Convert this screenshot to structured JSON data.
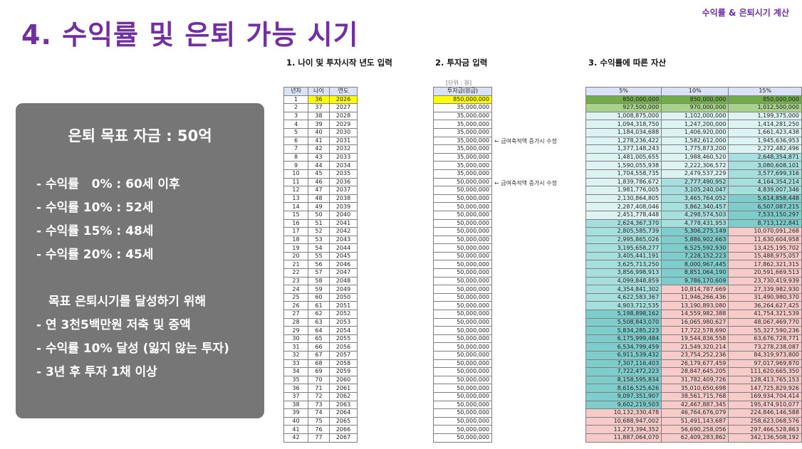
{
  "header": {
    "top_label": "수익률 & 은퇴시기 계산",
    "title": "4. 수익률 및 은퇴 가능 시기"
  },
  "panel": {
    "goal": "은퇴 목표 자금 : 50억",
    "lines": [
      "- 수익률   0% : 60세 이후",
      "- 수익률 10% : 52세",
      "- 수익률 15% : 48세",
      "- 수익률 20% : 45세",
      "목표 은퇴시기를 달성하기 위해",
      "- 연 3천5백만원 저축 및 증액",
      "- 수익률 10% 달성 (잃지 않는 투자)",
      "- 3년 후 투자 1채 이상"
    ]
  },
  "sections": {
    "s1": "1. 나이 및 투자시작 년도 입력",
    "s2": "2. 투자금 입력",
    "s3": "3. 수익률에 따른 자산",
    "unit": "[단위 : 원]"
  },
  "notes": {
    "n1": "← 급여축적액 증가시 수정",
    "n2": "← 급여축적액 증가시 수정"
  },
  "colors": {
    "purple": "#7030a0",
    "highlight_yellow": "#ffff00",
    "green_dark": "#70ad47",
    "green_light": "#a9d18e",
    "teal_light": "#ddf2f2",
    "teal_mid": "#a7dede",
    "teal_dark": "#7fcccc",
    "pink": "#f8cbcb"
  },
  "table": {
    "headers": [
      "년차",
      "나이",
      "연도",
      "투자금(원금)",
      "5%",
      "10%",
      "15%"
    ],
    "rows": [
      [
        "1",
        "36",
        "2026",
        "850,000,000",
        "850,000,000",
        "850,000,000",
        "850,000,000"
      ],
      [
        "2",
        "37",
        "2027",
        "35,000,000",
        "927,500,000",
        "970,000,000",
        "1,012,500,000"
      ],
      [
        "3",
        "38",
        "2028",
        "35,000,000",
        "1,008,875,000",
        "1,102,000,000",
        "1,199,375,000"
      ],
      [
        "4",
        "39",
        "2029",
        "35,000,000",
        "1,094,318,750",
        "1,247,200,000",
        "1,414,281,250"
      ],
      [
        "5",
        "40",
        "2030",
        "35,000,000",
        "1,184,034,688",
        "1,406,920,000",
        "1,661,423,438"
      ],
      [
        "6",
        "41",
        "2031",
        "35,000,000",
        "1,278,236,422",
        "1,582,612,000",
        "1,945,636,953"
      ],
      [
        "7",
        "42",
        "2032",
        "35,000,000",
        "1,377,148,243",
        "1,775,873,200",
        "2,272,482,496"
      ],
      [
        "8",
        "43",
        "2033",
        "35,000,000",
        "1,481,005,655",
        "1,988,460,520",
        "2,648,354,871"
      ],
      [
        "9",
        "44",
        "2034",
        "35,000,000",
        "1,590,055,938",
        "2,222,306,572",
        "3,080,608,101"
      ],
      [
        "10",
        "45",
        "2035",
        "35,000,000",
        "1,704,558,735",
        "2,479,537,229",
        "3,577,699,316"
      ],
      [
        "11",
        "46",
        "2036",
        "50,000,000",
        "1,839,786,672",
        "2,777,490,952",
        "4,164,354,214"
      ],
      [
        "12",
        "47",
        "2037",
        "50,000,000",
        "1,981,776,005",
        "3,105,240,047",
        "4,839,007,346"
      ],
      [
        "13",
        "48",
        "2038",
        "50,000,000",
        "2,130,864,805",
        "3,465,764,052",
        "5,614,858,448"
      ],
      [
        "14",
        "49",
        "2039",
        "50,000,000",
        "2,287,408,046",
        "3,862,340,457",
        "6,507,087,215"
      ],
      [
        "15",
        "50",
        "2040",
        "50,000,000",
        "2,451,778,448",
        "4,298,574,503",
        "7,533,150,297"
      ],
      [
        "16",
        "51",
        "2041",
        "50,000,000",
        "2,624,367,370",
        "4,778,431,953",
        "8,713,122,841"
      ],
      [
        "17",
        "52",
        "2042",
        "50,000,000",
        "2,805,585,739",
        "5,306,275,149",
        "10,070,091,268"
      ],
      [
        "18",
        "53",
        "2043",
        "50,000,000",
        "2,995,865,026",
        "5,886,902,663",
        "11,630,604,958"
      ],
      [
        "19",
        "54",
        "2044",
        "50,000,000",
        "3,195,658,277",
        "6,525,592,930",
        "13,425,195,702"
      ],
      [
        "20",
        "55",
        "2045",
        "50,000,000",
        "3,405,441,191",
        "7,228,152,223",
        "15,488,975,057"
      ],
      [
        "21",
        "56",
        "2046",
        "50,000,000",
        "3,625,713,250",
        "8,000,967,445",
        "17,862,321,315"
      ],
      [
        "22",
        "57",
        "2047",
        "50,000,000",
        "3,856,998,913",
        "8,851,064,190",
        "20,591,669,513"
      ],
      [
        "23",
        "58",
        "2048",
        "50,000,000",
        "4,099,848,859",
        "9,786,170,609",
        "23,730,419,939"
      ],
      [
        "24",
        "59",
        "2049",
        "50,000,000",
        "4,354,841,302",
        "10,814,787,669",
        "27,339,982,930"
      ],
      [
        "25",
        "60",
        "2050",
        "50,000,000",
        "4,622,583,367",
        "11,946,266,436",
        "31,490,980,370"
      ],
      [
        "26",
        "61",
        "2051",
        "50,000,000",
        "4,903,712,535",
        "13,190,893,080",
        "36,264,627,425"
      ],
      [
        "27",
        "62",
        "2052",
        "50,000,000",
        "5,198,898,162",
        "14,559,982,388",
        "41,754,321,539"
      ],
      [
        "28",
        "63",
        "2053",
        "50,000,000",
        "5,508,843,070",
        "16,065,980,627",
        "48,067,469,770"
      ],
      [
        "29",
        "64",
        "2054",
        "50,000,000",
        "5,834,285,223",
        "17,722,578,690",
        "55,327,590,236"
      ],
      [
        "30",
        "65",
        "2055",
        "50,000,000",
        "6,175,999,484",
        "19,544,836,558",
        "63,676,728,771"
      ],
      [
        "31",
        "66",
        "2056",
        "50,000,000",
        "6,534,799,459",
        "21,549,320,214",
        "73,278,238,087"
      ],
      [
        "32",
        "67",
        "2057",
        "50,000,000",
        "6,911,539,432",
        "23,754,252,236",
        "84,319,973,800"
      ],
      [
        "33",
        "68",
        "2058",
        "50,000,000",
        "7,307,116,403",
        "26,179,677,459",
        "97,017,969,870"
      ],
      [
        "34",
        "69",
        "2059",
        "50,000,000",
        "7,722,472,223",
        "28,847,645,205",
        "111,620,665,350"
      ],
      [
        "35",
        "70",
        "2060",
        "50,000,000",
        "8,158,595,834",
        "31,782,409,726",
        "128,413,765,153"
      ],
      [
        "36",
        "71",
        "2061",
        "50,000,000",
        "8,616,525,626",
        "35,010,650,698",
        "147,725,829,926"
      ],
      [
        "37",
        "72",
        "2062",
        "50,000,000",
        "9,097,351,907",
        "38,561,715,768",
        "169,934,704,414"
      ],
      [
        "38",
        "73",
        "2063",
        "50,000,000",
        "9,602,219,503",
        "42,467,887,345",
        "195,474,910,077"
      ],
      [
        "39",
        "74",
        "2064",
        "50,000,000",
        "10,132,330,478",
        "46,764,676,079",
        "224,846,146,588"
      ],
      [
        "40",
        "75",
        "2065",
        "50,000,000",
        "10,688,947,002",
        "51,491,143,687",
        "258,623,068,576"
      ],
      [
        "41",
        "76",
        "2066",
        "50,000,000",
        "11,273,394,352",
        "56,690,258,056",
        "297,466,528,863"
      ],
      [
        "42",
        "77",
        "2067",
        "50,000,000",
        "11,887,064,070",
        "62,409,283,862",
        "342,136,508,192"
      ]
    ]
  }
}
